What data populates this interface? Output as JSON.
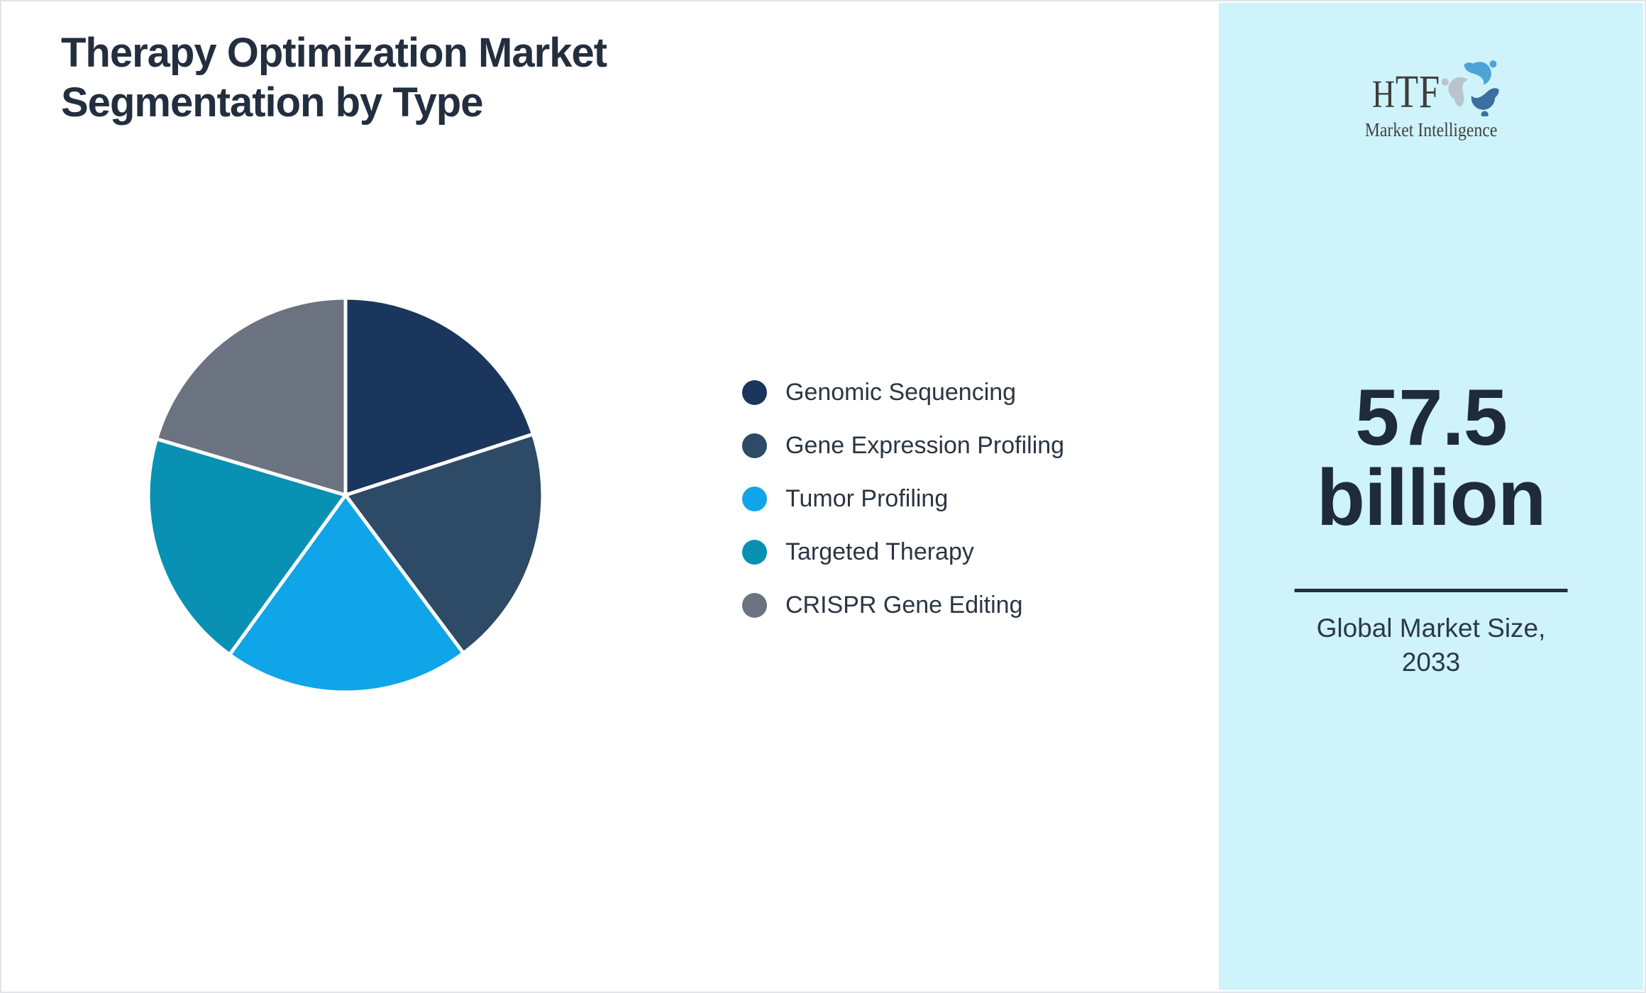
{
  "page": {
    "background": "#ffffff",
    "border_color": "#e2e5e9"
  },
  "header": {
    "title_line1": "Therapy Optimization Market",
    "title_line2": "Segmentation by Type",
    "title_color": "#232e3f"
  },
  "chart_data": {
    "type": "pie",
    "title": "Therapy Optimization Market Segmentation by Type",
    "legend_position": "right",
    "start_angle_deg": 0,
    "direction": "clockwise",
    "slice_border_color": "#ffffff",
    "slices": [
      {
        "label": "Genomic Sequencing",
        "value": 20.0,
        "color": "#1a365d"
      },
      {
        "label": "Gene Expression Profiling",
        "value": 19.8,
        "color": "#2d4a66"
      },
      {
        "label": "Tumor Profiling",
        "value": 20.2,
        "color": "#10a5e9"
      },
      {
        "label": "Targeted Therapy",
        "value": 19.6,
        "color": "#0891b2"
      },
      {
        "label": "CRISPR Gene Editing",
        "value": 20.4,
        "color": "#6b7280"
      }
    ]
  },
  "sidebar": {
    "background": "#cef3fb",
    "logo": {
      "brand": "HTF",
      "brand_first_letter": "H",
      "brand_rest": "TF",
      "tagline": "Market Intelligence",
      "text_color": "#3f3d3a",
      "swoosh_light_blue": "#4da3d8",
      "swoosh_gray": "#b9c4cc",
      "swoosh_dark_blue": "#3a6f9f"
    },
    "stat": {
      "value_line1": "57.5",
      "value_line2": "billion",
      "divider_color": "#22303f",
      "caption_line1": "Global Market Size,",
      "caption_line2": "2033"
    }
  }
}
